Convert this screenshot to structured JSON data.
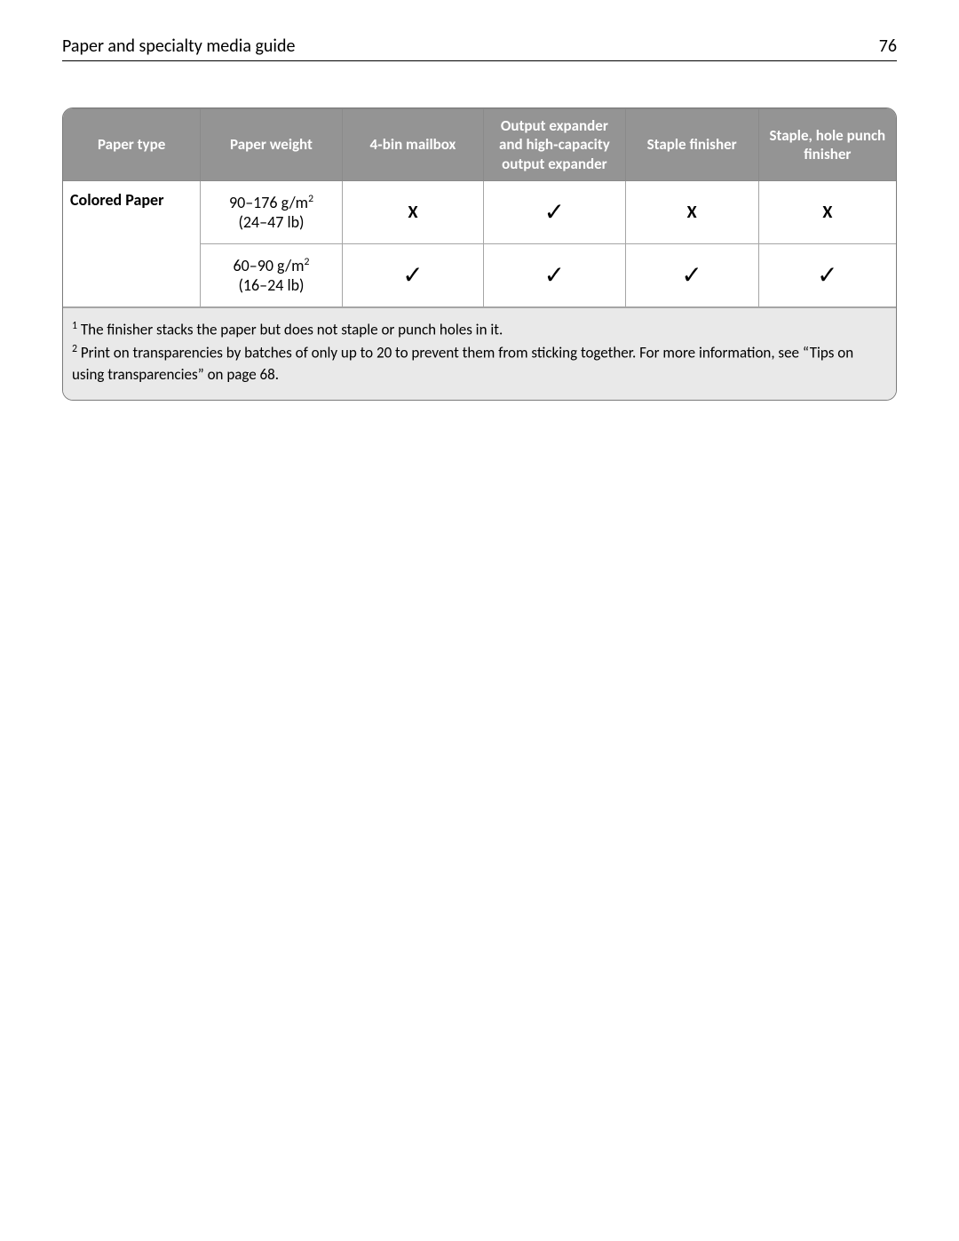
{
  "header": {
    "title": "Paper and specialty media guide",
    "page_number": "76"
  },
  "table": {
    "columns": [
      "Paper type",
      "Paper weight",
      "4‑bin mailbox",
      "Output expander and high‑capacity output expander",
      "Staple finisher",
      "Staple, hole punch finisher"
    ],
    "paper_type": "Colored Paper",
    "rows": [
      {
        "weight_metric": "90–176 g/m",
        "weight_imperial": "(24–47 lb)",
        "cells": [
          "X",
          "✓",
          "X",
          "X"
        ]
      },
      {
        "weight_metric": "60–90 g/m",
        "weight_imperial": "(16–24 lb)",
        "cells": [
          "✓",
          "✓",
          "✓",
          "✓"
        ]
      }
    ]
  },
  "footnotes": {
    "n1": "The finisher stacks the paper but does not staple or punch holes in it.",
    "n2": "Print on transparencies by batches of only up to 20 to prevent them from sticking together. For more information, see “Tips on using transparencies” on page 68."
  },
  "marks": {
    "x": "X",
    "check": "✓"
  }
}
